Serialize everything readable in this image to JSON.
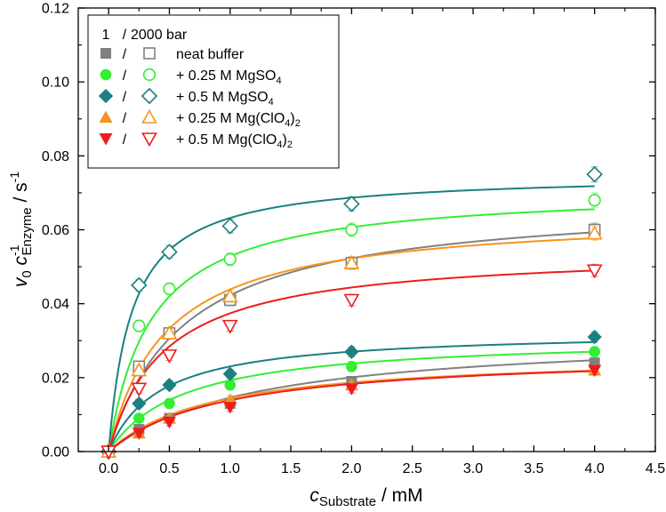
{
  "chart_data": {
    "type": "scatter",
    "title": "",
    "xlabel": {
      "main": "c",
      "sub": "Substrate",
      "unit": " / mM"
    },
    "ylabel": {
      "v": "v",
      "v_sub": "0",
      "c": " c",
      "c_sup": "-1",
      "c_sub": "Enzyme",
      "unit": " / s",
      "unit_sup": "-1"
    },
    "xlim": [
      -0.25,
      4.5
    ],
    "ylim": [
      0,
      0.12
    ],
    "xticks": [
      0.0,
      0.5,
      1.0,
      1.5,
      2.0,
      2.5,
      3.0,
      3.5,
      4.0,
      4.5
    ],
    "xtick_labels": [
      "0.0",
      "0.5",
      "1.0",
      "1.5",
      "2.0",
      "2.5",
      "3.0",
      "3.5",
      "4.0",
      "4.5"
    ],
    "yticks": [
      0.0,
      0.02,
      0.04,
      0.06,
      0.08,
      0.1,
      0.12
    ],
    "ytick_labels": [
      "0.00",
      "0.02",
      "0.04",
      "0.06",
      "0.08",
      "0.10",
      "0.12"
    ],
    "grid": false,
    "legend": {
      "position": "top-left",
      "header": {
        "left": "1",
        "slash": "/",
        "right": "2000 bar"
      },
      "entries": [
        {
          "label": "neat buffer"
        },
        {
          "label": "+ 0.25 M MgSO",
          "sub": "4"
        },
        {
          "label": "+ 0.5 M MgSO",
          "sub": "4"
        },
        {
          "label": "+ 0.25 M Mg(ClO",
          "sub": "4",
          "tail": ")",
          "sub2": "2"
        },
        {
          "label": "+ 0.5 M Mg(ClO",
          "sub": "4",
          "tail": ")",
          "sub2": "2"
        }
      ]
    },
    "x": [
      0.0,
      0.25,
      0.5,
      1.0,
      2.0,
      4.0
    ],
    "series": [
      {
        "name": "neat buffer",
        "marker": "square",
        "color": "#808080",
        "p1": [
          0.0,
          0.006,
          0.009,
          0.013,
          0.019,
          0.024
        ],
        "p2000": [
          0.0,
          0.023,
          0.032,
          0.041,
          0.051,
          0.06
        ],
        "fit1": {
          "vmax": 0.0321,
          "km": 1.2
        },
        "fit2000": {
          "vmax": 0.0685,
          "km": 0.62
        }
      },
      {
        "name": "+ 0.25 M MgSO4",
        "marker": "circle",
        "color": "#33ee33",
        "p1": [
          0.0,
          0.009,
          0.013,
          0.018,
          0.023,
          0.027
        ],
        "p2000": [
          0.0,
          0.034,
          0.044,
          0.052,
          0.06,
          0.068
        ],
        "fit1": {
          "vmax": 0.0312,
          "km": 0.62
        },
        "fit2000": {
          "vmax": 0.0713,
          "km": 0.35
        }
      },
      {
        "name": "+ 0.5 M MgSO4",
        "marker": "diamond",
        "color": "#1a8080",
        "p1": [
          0.0,
          0.013,
          0.018,
          0.021,
          0.027,
          0.031
        ],
        "p2000": [
          0.0,
          0.045,
          0.054,
          0.061,
          0.067,
          0.075
        ],
        "fit1": {
          "vmax": 0.0327,
          "km": 0.42
        },
        "fit2000": {
          "vmax": 0.0752,
          "km": 0.19
        }
      },
      {
        "name": "+ 0.25 M Mg(ClO4)2",
        "marker": "triangle-up",
        "color": "#f7941d",
        "p1": [
          0.0,
          0.005,
          0.009,
          0.014,
          0.018,
          0.022
        ],
        "p2000": [
          0.0,
          0.022,
          0.032,
          0.042,
          0.051,
          0.059
        ],
        "fit1": {
          "vmax": 0.0265,
          "km": 0.84
        },
        "fit2000": {
          "vmax": 0.0645,
          "km": 0.47
        }
      },
      {
        "name": "+ 0.5 M Mg(ClO4)2",
        "marker": "triangle-down",
        "color": "#ee1c1c",
        "p1": [
          0.0,
          0.005,
          0.008,
          0.012,
          0.017,
          0.022
        ],
        "p2000": [
          0.0,
          0.017,
          0.026,
          0.034,
          0.041,
          0.049
        ],
        "fit1": {
          "vmax": 0.0269,
          "km": 0.94
        },
        "fit2000": {
          "vmax": 0.0546,
          "km": 0.46
        }
      }
    ]
  }
}
